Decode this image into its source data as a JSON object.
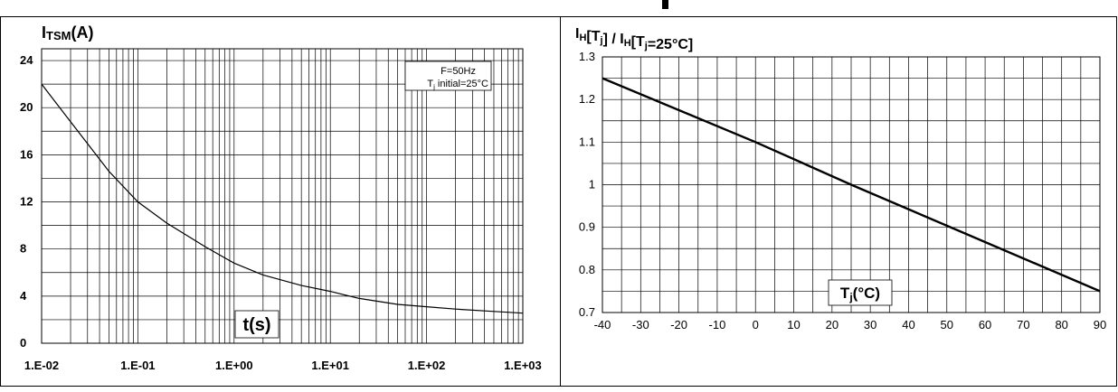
{
  "chart_data": [
    {
      "type": "line",
      "title_main": "I",
      "title_sub": "TSM",
      "title_rest": "(A)",
      "xlabel": "t(s)",
      "x_scale": "log",
      "xlim": [
        0.01,
        1000
      ],
      "ylim": [
        0,
        25
      ],
      "grid": true,
      "x_tick_labels": [
        "1.E-02",
        "1.E-01",
        "1.E+00",
        "1.E+01",
        "1.E+02",
        "1.E+03"
      ],
      "y_ticks": [
        0,
        4,
        8,
        12,
        16,
        20,
        24
      ],
      "legend": {
        "line1": "F=50Hz",
        "line2_main": "T",
        "line2_sub": "j",
        "line2_rest": " initial=25°C",
        "placement": "top-right"
      },
      "series": [
        {
          "x": [
            0.01,
            0.02,
            0.05,
            0.1,
            0.2,
            0.5,
            1,
            2,
            5,
            10,
            20,
            50,
            100,
            200,
            500,
            1000
          ],
          "y": [
            22,
            18.8,
            14.6,
            12,
            10.2,
            8.2,
            6.8,
            5.8,
            4.9,
            4.4,
            3.8,
            3.3,
            3.1,
            2.9,
            2.7,
            2.55
          ]
        }
      ]
    },
    {
      "type": "line",
      "title_parts": [
        {
          "t": "I",
          "sub": false
        },
        {
          "t": "H",
          "sub": true
        },
        {
          "t": "[T",
          "sub": false
        },
        {
          "t": "j",
          "sub": true
        },
        {
          "t": "] / I",
          "sub": false
        },
        {
          "t": "H",
          "sub": true
        },
        {
          "t": "[T",
          "sub": false
        },
        {
          "t": "j",
          "sub": true
        },
        {
          "t": "=25°C]",
          "sub": false
        }
      ],
      "xlabel_main": "T",
      "xlabel_sub": "j",
      "xlabel_rest": "(°C)",
      "xlim": [
        -40,
        90
      ],
      "ylim": [
        0.7,
        1.3
      ],
      "grid": true,
      "x_ticks": [
        -40,
        -30,
        -20,
        -10,
        0,
        10,
        20,
        30,
        40,
        50,
        60,
        70,
        80,
        90
      ],
      "y_tick_labels": [
        "0.7",
        "0.8",
        "0.9",
        "1",
        "1.1",
        "1.2",
        "1.3"
      ],
      "series": [
        {
          "x": [
            -40,
            0,
            25,
            90
          ],
          "y": [
            1.25,
            1.1,
            1.0,
            0.75
          ]
        }
      ]
    }
  ]
}
